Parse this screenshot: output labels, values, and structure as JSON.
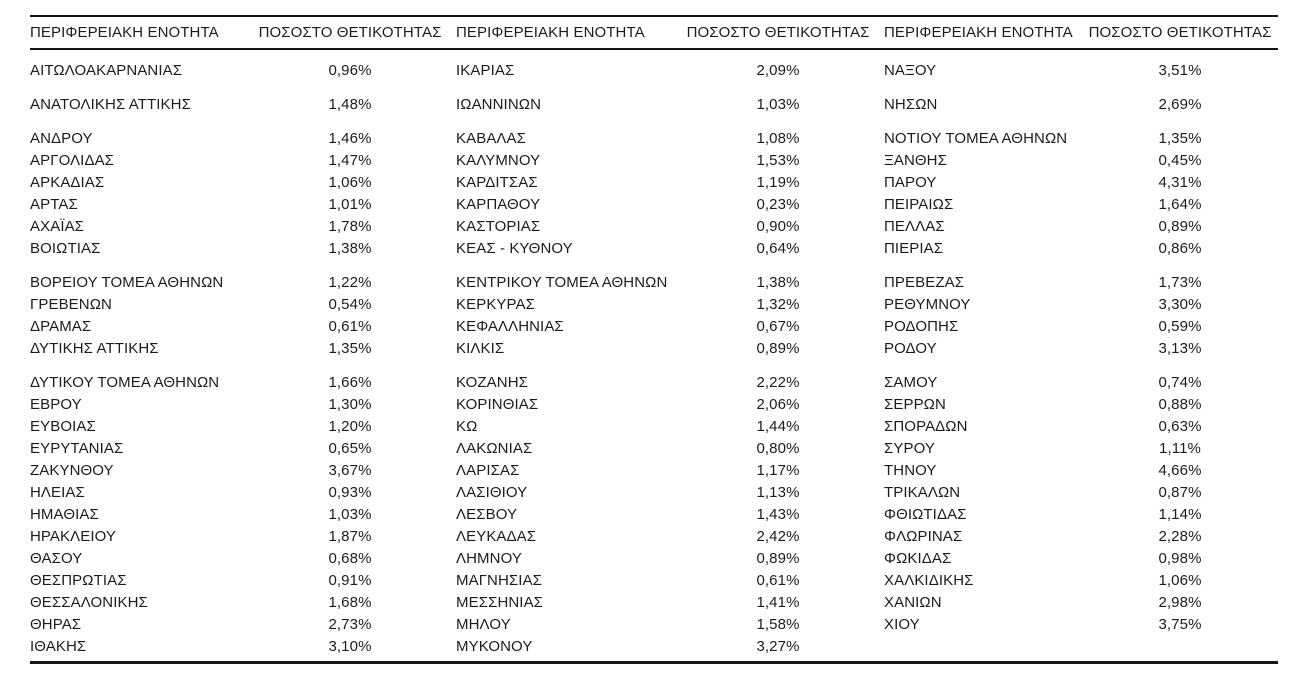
{
  "table": {
    "headers": [
      "ΠΕΡΙΦΕΡΕΙΑΚΗ ΕΝΟΤΗΤΑ",
      "ΠΟΣΟΣΤΟ ΘΕΤΙΚΟΤΗΤΑΣ",
      "ΠΕΡΙΦΕΡΕΙΑΚΗ ΕΝΟΤΗΤΑ",
      "ΠΟΣΟΣΤΟ ΘΕΤΙΚΟΤΗΤΑΣ",
      "ΠΕΡΙΦΕΡΕΙΑΚΗ ΕΝΟΤΗΤΑ",
      "ΠΟΣΟΣΤΟ ΘΕΤΙΚΟΤΗΤΑΣ"
    ],
    "rows": [
      {
        "gap_before": false,
        "cells": [
          "ΑΙΤΩΛΟΑΚΑΡΝΑΝΙΑΣ",
          "0,96%",
          "ΙΚΑΡΙΑΣ",
          "2,09%",
          "ΝΑΞΟΥ",
          "3,51%"
        ]
      },
      {
        "gap_before": true,
        "cells": [
          "ΑΝΑΤΟΛΙΚΗΣ ΑΤΤΙΚΗΣ",
          "1,48%",
          "ΙΩΑΝΝΙΝΩΝ",
          "1,03%",
          "ΝΗΣΩΝ",
          "2,69%"
        ]
      },
      {
        "gap_before": true,
        "cells": [
          "ΑΝΔΡΟΥ",
          "1,46%",
          "ΚΑΒΑΛΑΣ",
          "1,08%",
          "ΝΟΤΙΟΥ ΤΟΜΕΑ ΑΘΗΝΩΝ",
          "1,35%"
        ]
      },
      {
        "gap_before": false,
        "cells": [
          "ΑΡΓΟΛΙΔΑΣ",
          "1,47%",
          "ΚΑΛΥΜΝΟΥ",
          "1,53%",
          "ΞΑΝΘΗΣ",
          "0,45%"
        ]
      },
      {
        "gap_before": false,
        "cells": [
          "ΑΡΚΑΔΙΑΣ",
          "1,06%",
          "ΚΑΡΔΙΤΣΑΣ",
          "1,19%",
          "ΠΑΡΟΥ",
          "4,31%"
        ]
      },
      {
        "gap_before": false,
        "cells": [
          "ΑΡΤΑΣ",
          "1,01%",
          "ΚΑΡΠΑΘΟΥ",
          "0,23%",
          "ΠΕΙΡΑΙΩΣ",
          "1,64%"
        ]
      },
      {
        "gap_before": false,
        "cells": [
          "ΑΧΑΪΑΣ",
          "1,78%",
          "ΚΑΣΤΟΡΙΑΣ",
          "0,90%",
          "ΠΕΛΛΑΣ",
          "0,89%"
        ]
      },
      {
        "gap_before": false,
        "cells": [
          "ΒΟΙΩΤΙΑΣ",
          "1,38%",
          "ΚΕΑΣ - ΚΥΘΝΟΥ",
          "0,64%",
          "ΠΙΕΡΙΑΣ",
          "0,86%"
        ]
      },
      {
        "gap_before": true,
        "cells": [
          "ΒΟΡΕΙΟΥ ΤΟΜΕΑ ΑΘΗΝΩΝ",
          "1,22%",
          "ΚΕΝΤΡΙΚΟΥ ΤΟΜΕΑ ΑΘΗΝΩΝ",
          "1,38%",
          "ΠΡΕΒΕΖΑΣ",
          "1,73%"
        ]
      },
      {
        "gap_before": false,
        "cells": [
          "ΓΡΕΒΕΝΩΝ",
          "0,54%",
          "ΚΕΡΚΥΡΑΣ",
          "1,32%",
          "ΡΕΘΥΜΝΟΥ",
          "3,30%"
        ]
      },
      {
        "gap_before": false,
        "cells": [
          "ΔΡΑΜΑΣ",
          "0,61%",
          "ΚΕΦΑΛΛΗΝΙΑΣ",
          "0,67%",
          "ΡΟΔΟΠΗΣ",
          "0,59%"
        ]
      },
      {
        "gap_before": false,
        "cells": [
          "ΔΥΤΙΚΗΣ ΑΤΤΙΚΗΣ",
          "1,35%",
          "ΚΙΛΚΙΣ",
          "0,89%",
          "ΡΟΔΟΥ",
          "3,13%"
        ]
      },
      {
        "gap_before": true,
        "cells": [
          "ΔΥΤΙΚΟΥ ΤΟΜΕΑ ΑΘΗΝΩΝ",
          "1,66%",
          "ΚΟΖΑΝΗΣ",
          "2,22%",
          "ΣΑΜΟΥ",
          "0,74%"
        ]
      },
      {
        "gap_before": false,
        "cells": [
          "ΕΒΡΟΥ",
          "1,30%",
          "ΚΟΡΙΝΘΙΑΣ",
          "2,06%",
          "ΣΕΡΡΩΝ",
          "0,88%"
        ]
      },
      {
        "gap_before": false,
        "cells": [
          "ΕΥΒΟΙΑΣ",
          "1,20%",
          "ΚΩ",
          "1,44%",
          "ΣΠΟΡΑΔΩΝ",
          "0,63%"
        ]
      },
      {
        "gap_before": false,
        "cells": [
          "ΕΥΡΥΤΑΝΙΑΣ",
          "0,65%",
          "ΛΑΚΩΝΙΑΣ",
          "0,80%",
          "ΣΥΡΟΥ",
          "1,11%"
        ]
      },
      {
        "gap_before": false,
        "cells": [
          "ΖΑΚΥΝΘΟΥ",
          "3,67%",
          "ΛΑΡΙΣΑΣ",
          "1,17%",
          "ΤΗΝΟΥ",
          "4,66%"
        ]
      },
      {
        "gap_before": false,
        "cells": [
          "ΗΛΕΙΑΣ",
          "0,93%",
          "ΛΑΣΙΘΙΟΥ",
          "1,13%",
          "ΤΡΙΚΑΛΩΝ",
          "0,87%"
        ]
      },
      {
        "gap_before": false,
        "cells": [
          "ΗΜΑΘΙΑΣ",
          "1,03%",
          "ΛΕΣΒΟΥ",
          "1,43%",
          "ΦΘΙΩΤΙΔΑΣ",
          "1,14%"
        ]
      },
      {
        "gap_before": false,
        "cells": [
          "ΗΡΑΚΛΕΙΟΥ",
          "1,87%",
          "ΛΕΥΚΑΔΑΣ",
          "2,42%",
          "ΦΛΩΡΙΝΑΣ",
          "2,28%"
        ]
      },
      {
        "gap_before": false,
        "cells": [
          "ΘΑΣΟΥ",
          "0,68%",
          "ΛΗΜΝΟΥ",
          "0,89%",
          "ΦΩΚΙΔΑΣ",
          "0,98%"
        ]
      },
      {
        "gap_before": false,
        "cells": [
          "ΘΕΣΠΡΩΤΙΑΣ",
          "0,91%",
          "ΜΑΓΝΗΣΙΑΣ",
          "0,61%",
          "ΧΑΛΚΙΔΙΚΗΣ",
          "1,06%"
        ]
      },
      {
        "gap_before": false,
        "cells": [
          "ΘΕΣΣΑΛΟΝΙΚΗΣ",
          "1,68%",
          "ΜΕΣΣΗΝΙΑΣ",
          "1,41%",
          "ΧΑΝΙΩΝ",
          "2,98%"
        ]
      },
      {
        "gap_before": false,
        "cells": [
          "ΘΗΡΑΣ",
          "2,73%",
          "ΜΗΛΟΥ",
          "1,58%",
          "ΧΙΟΥ",
          "3,75%"
        ]
      },
      {
        "gap_before": false,
        "cells": [
          "ΙΘΑΚΗΣ",
          "3,10%",
          "ΜΥΚΟΝΟΥ",
          "3,27%",
          "",
          ""
        ]
      }
    ]
  },
  "colors": {
    "text": "#1c1c1c",
    "rule": "#161616",
    "background": "#ffffff"
  }
}
